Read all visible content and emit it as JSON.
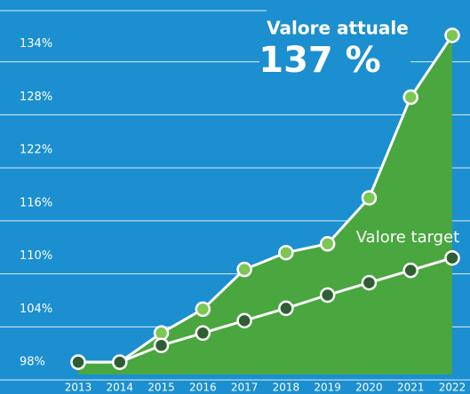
{
  "chart_data": {
    "type": "line",
    "categories": [
      "2013",
      "2014",
      "2015",
      "2016",
      "2017",
      "2018",
      "2019",
      "2020",
      "2021",
      "2022"
    ],
    "series": [
      {
        "name": "Valore attuale",
        "color": "#7cc653",
        "values": [
          100,
          100,
          103.3,
          106,
          110.5,
          112.4,
          113.4,
          118.6,
          130,
          137
        ]
      },
      {
        "name": "Valore target",
        "color": "#2f5d34",
        "values": [
          100,
          100,
          101.9,
          103.3,
          104.7,
          106.1,
          107.6,
          109,
          110.4,
          111.8
        ]
      }
    ],
    "annotations": [
      "137 %"
    ],
    "area_color": "#4aa63f",
    "ylim": [
      96.4,
      141
    ],
    "yticks": [
      {
        "value": 98,
        "label": "98%"
      },
      {
        "value": 104,
        "label": "104%"
      },
      {
        "value": 110,
        "label": "110%"
      },
      {
        "value": 116,
        "label": "116%"
      },
      {
        "value": 122,
        "label": "122%"
      },
      {
        "value": 128,
        "label": "128%"
      },
      {
        "value": 134,
        "label": "134%"
      }
    ],
    "grid": true
  }
}
